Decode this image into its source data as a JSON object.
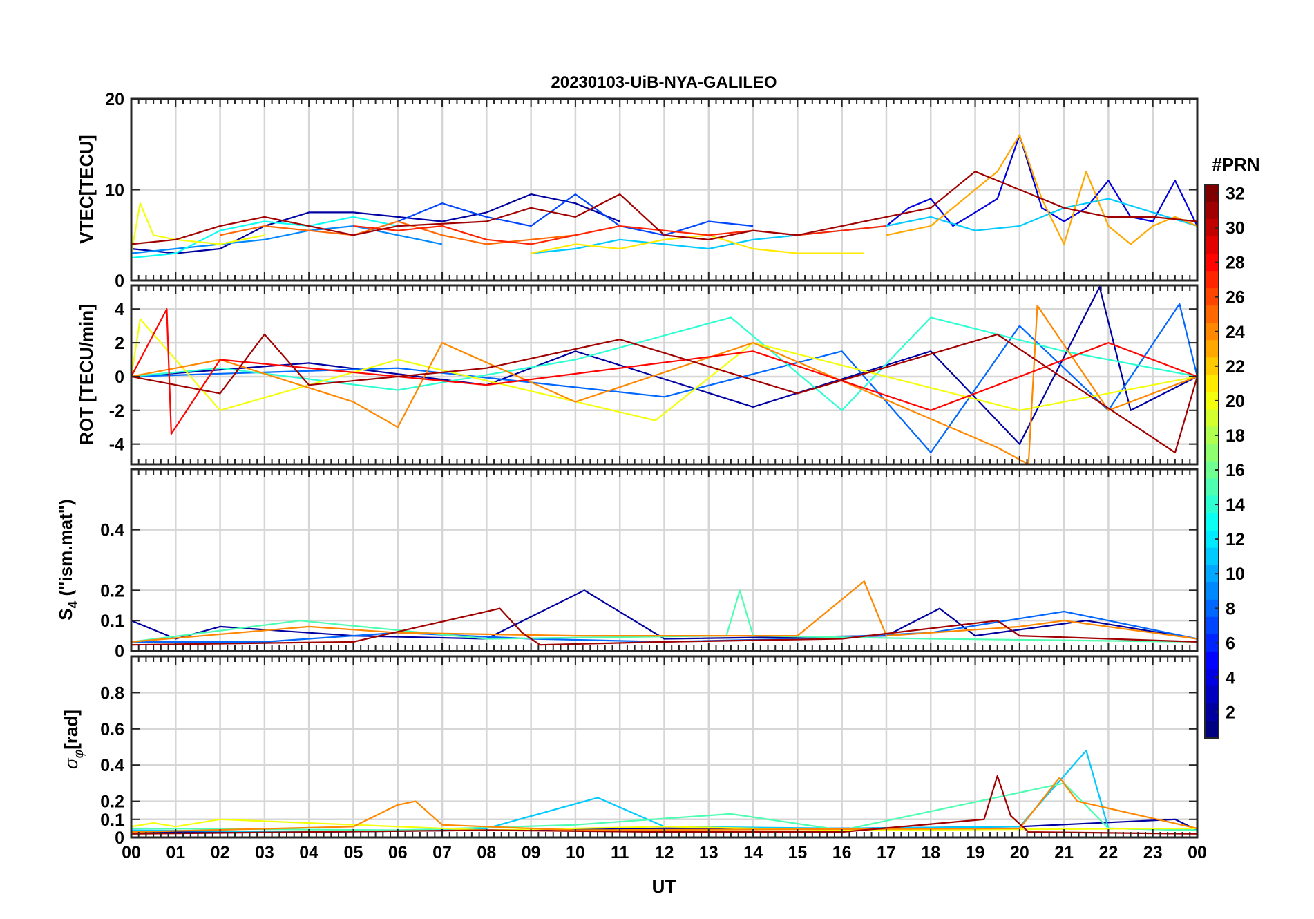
{
  "title": "20230103-UiB-NYA-GALILEO",
  "colorbar": {
    "label": "#PRN",
    "ticks": [
      "2",
      "4",
      "6",
      "8",
      "10",
      "12",
      "14",
      "16",
      "18",
      "20",
      "22",
      "24",
      "26",
      "28",
      "30",
      "32"
    ],
    "range": [
      1,
      32
    ],
    "colormap": "jet",
    "colors": [
      "#00008f",
      "#0000ff",
      "#0080ff",
      "#00ffff",
      "#80ff80",
      "#ffff00",
      "#ff8000",
      "#ff0000",
      "#800000"
    ]
  },
  "x_axis": {
    "label": "UT",
    "ticks": [
      "00",
      "01",
      "02",
      "03",
      "04",
      "05",
      "06",
      "07",
      "08",
      "09",
      "10",
      "11",
      "12",
      "13",
      "14",
      "15",
      "16",
      "17",
      "18",
      "19",
      "20",
      "21",
      "22",
      "23",
      "00"
    ],
    "range": [
      0,
      24
    ]
  },
  "panels": [
    {
      "id": "vtec",
      "ylabel": "VTEC[TECU]",
      "ylim": [
        0,
        20
      ],
      "yticks": [
        0,
        10,
        20
      ],
      "ytick_labels": [
        "0",
        "10",
        "20"
      ]
    },
    {
      "id": "rot",
      "ylabel": "ROT [TECU/min]",
      "ylim": [
        -5.2,
        5.4
      ],
      "yticks": [
        -4,
        -2,
        0,
        2,
        4
      ],
      "ytick_labels": [
        "-4",
        "-2",
        "0",
        "2",
        "4"
      ]
    },
    {
      "id": "s4",
      "ylabel": "S4 (\"ism.mat\")",
      "ylim": [
        0,
        0.6
      ],
      "yticks": [
        0,
        0.1,
        0.2,
        0.4
      ],
      "ytick_labels": [
        "0",
        "0.1",
        "0.2",
        "0.4"
      ]
    },
    {
      "id": "sigma",
      "ylabel": "σφ[rad]",
      "ylim": [
        0,
        1.0
      ],
      "yticks": [
        0,
        0.1,
        0.2,
        0.4,
        0.6,
        0.8
      ],
      "ytick_labels": [
        "0",
        "0.1",
        "0.2",
        "0.4",
        "0.6",
        "0.8"
      ]
    }
  ],
  "chart_data": [
    {
      "type": "line",
      "panel": "vtec",
      "title": "20230103-UiB-NYA-GALILEO",
      "ylabel": "VTEC[TECU]",
      "xlim": [
        0,
        24
      ],
      "ylim": [
        0,
        20
      ],
      "grid": true,
      "series": [
        {
          "prn": 2,
          "x": [
            0,
            1,
            2,
            3,
            4,
            5,
            6,
            7,
            8,
            9,
            10,
            11
          ],
          "y": [
            3.5,
            3,
            3.5,
            6,
            7.5,
            7.5,
            7,
            6.5,
            7.5,
            9.5,
            8.5,
            6.5
          ]
        },
        {
          "prn": 4,
          "x": [
            17,
            17.5,
            18,
            18.5,
            19,
            19.5,
            20,
            20.5,
            21,
            21.5,
            22,
            22.5,
            23,
            23.5,
            24
          ],
          "y": [
            6,
            8,
            9,
            6,
            7.5,
            9,
            16,
            8,
            6.5,
            8,
            11,
            7,
            6.5,
            11,
            6
          ]
        },
        {
          "prn": 7,
          "x": [
            6,
            7,
            8,
            9,
            10,
            11,
            12,
            13,
            14
          ],
          "y": [
            6.5,
            8.5,
            7,
            6,
            9.5,
            6,
            5,
            6.5,
            6
          ]
        },
        {
          "prn": 9,
          "x": [
            0,
            1,
            2,
            3,
            4,
            5,
            6,
            7
          ],
          "y": [
            3,
            3.5,
            4,
            4.5,
            5.5,
            6,
            5,
            4
          ]
        },
        {
          "prn": 11,
          "x": [
            9,
            10,
            11,
            12,
            13,
            14,
            15,
            16,
            17,
            18,
            19,
            20,
            21,
            22,
            23,
            24
          ],
          "y": [
            3,
            3.5,
            4.5,
            4,
            3.5,
            4.5,
            5,
            5.5,
            6,
            7,
            5.5,
            6,
            8,
            9,
            7.5,
            6
          ]
        },
        {
          "prn": 13,
          "x": [
            0,
            1,
            2,
            3,
            4,
            5,
            6
          ],
          "y": [
            2.5,
            3,
            5.5,
            6.5,
            6,
            7,
            6
          ]
        },
        {
          "prn": 20,
          "x": [
            0,
            0.2,
            0.5,
            1,
            2,
            3
          ],
          "y": [
            3,
            8.5,
            5,
            4.5,
            4,
            5
          ]
        },
        {
          "prn": 21,
          "x": [
            9,
            10,
            11,
            12,
            13,
            14,
            15,
            16,
            16.5
          ],
          "y": [
            3,
            4,
            3.5,
            4.5,
            5,
            3.5,
            3,
            3,
            3
          ]
        },
        {
          "prn": 23,
          "x": [
            17,
            18,
            19,
            19.5,
            20,
            20.5,
            21,
            21.5,
            22,
            22.5,
            23,
            23.5,
            24
          ],
          "y": [
            5,
            6,
            10,
            12,
            16,
            9,
            4,
            12,
            6,
            4,
            6,
            7,
            6
          ]
        },
        {
          "prn": 25,
          "x": [
            2,
            3,
            4,
            5,
            6,
            7,
            8,
            9,
            10
          ],
          "y": [
            5,
            6,
            5.5,
            5,
            6.5,
            5,
            4,
            4.5,
            5
          ]
        },
        {
          "prn": 27,
          "x": [
            5,
            6,
            7,
            8,
            9,
            10,
            11,
            12,
            13,
            14,
            15,
            16,
            17
          ],
          "y": [
            6,
            5.5,
            6,
            4.5,
            4,
            5,
            6,
            5.5,
            5,
            5.5,
            5,
            5.5,
            6
          ]
        },
        {
          "prn": 31,
          "x": [
            0,
            1,
            2,
            3,
            4,
            5,
            6,
            8,
            9,
            10,
            11,
            12,
            13,
            14,
            15,
            16,
            17,
            18,
            19,
            20,
            21,
            22,
            23,
            24
          ],
          "y": [
            4,
            4.5,
            6,
            7,
            6,
            5,
            6,
            6.5,
            8,
            7,
            9.5,
            5,
            4.5,
            5.5,
            5,
            6,
            7,
            8,
            12,
            10,
            8,
            7,
            7,
            6.5
          ]
        }
      ]
    },
    {
      "type": "line",
      "panel": "rot",
      "ylabel": "ROT [TECU/min]",
      "xlim": [
        0,
        24
      ],
      "ylim": [
        -5.2,
        5.4
      ],
      "grid": true,
      "series": [
        {
          "prn": 2,
          "x": [
            0,
            4,
            8,
            10,
            14,
            18,
            20,
            21.8,
            22.5,
            24
          ],
          "y": [
            0,
            0.8,
            -0.5,
            1.5,
            -1.8,
            1.5,
            -4,
            5.3,
            -2,
            0
          ]
        },
        {
          "prn": 8,
          "x": [
            0,
            6,
            12,
            16,
            18,
            20,
            22,
            23.6,
            24
          ],
          "y": [
            0,
            0.5,
            -1.2,
            1.5,
            -4.5,
            3,
            -2,
            4.3,
            0
          ]
        },
        {
          "prn": 14,
          "x": [
            0,
            2,
            6,
            10,
            13.5,
            16,
            18,
            21,
            24
          ],
          "y": [
            0,
            0.5,
            -0.8,
            1,
            3.5,
            -2,
            3.5,
            1.5,
            0
          ]
        },
        {
          "prn": 20,
          "x": [
            0,
            0.2,
            2,
            6,
            11.8,
            14,
            20,
            24
          ],
          "y": [
            0,
            3.4,
            -2,
            1,
            -2.6,
            2,
            -2,
            0
          ]
        },
        {
          "prn": 24,
          "x": [
            0,
            2,
            5,
            6,
            7,
            10,
            14,
            19.5,
            20.2,
            20.4,
            22,
            24
          ],
          "y": [
            0,
            1,
            -1.5,
            -3,
            2,
            -1.5,
            2,
            -4.2,
            -5.2,
            4.2,
            -2,
            0
          ]
        },
        {
          "prn": 28,
          "x": [
            0,
            0.8,
            0.9,
            2,
            8,
            14,
            18,
            22,
            24
          ],
          "y": [
            0,
            4,
            -3.4,
            1,
            -0.5,
            1.5,
            -2,
            2,
            0
          ]
        },
        {
          "prn": 31,
          "x": [
            0,
            2,
            3,
            4,
            8,
            11,
            15,
            19.5,
            23.5,
            24
          ],
          "y": [
            0,
            -1,
            2.5,
            -0.5,
            0.5,
            2.2,
            -1,
            2.5,
            -4.5,
            0
          ]
        }
      ]
    },
    {
      "type": "line",
      "panel": "s4",
      "ylabel": "S4 (\"ism.mat\")",
      "xlim": [
        0,
        24
      ],
      "ylim": [
        0,
        0.6
      ],
      "grid": true,
      "series": [
        {
          "prn": 2,
          "x": [
            0,
            1,
            2,
            5,
            8,
            10.2,
            12,
            17,
            18.2,
            19,
            21.5,
            24
          ],
          "y": [
            0.1,
            0.04,
            0.08,
            0.05,
            0.04,
            0.2,
            0.04,
            0.05,
            0.14,
            0.05,
            0.1,
            0.04
          ]
        },
        {
          "prn": 8,
          "x": [
            0,
            3,
            6,
            9,
            12,
            15,
            18,
            21,
            24
          ],
          "y": [
            0.03,
            0.03,
            0.06,
            0.04,
            0.03,
            0.04,
            0.06,
            0.13,
            0.04
          ]
        },
        {
          "prn": 15,
          "x": [
            0,
            3.8,
            8,
            13.4,
            13.7,
            14,
            18,
            24
          ],
          "y": [
            0.03,
            0.1,
            0.04,
            0.05,
            0.2,
            0.05,
            0.04,
            0.03
          ]
        },
        {
          "prn": 24,
          "x": [
            0,
            4,
            6,
            10,
            15,
            16.5,
            17,
            20,
            21,
            24
          ],
          "y": [
            0.03,
            0.08,
            0.06,
            0.05,
            0.05,
            0.23,
            0.05,
            0.08,
            0.1,
            0.04
          ]
        },
        {
          "prn": 31,
          "x": [
            0,
            5,
            8.3,
            8.8,
            9.2,
            12,
            16,
            19.5,
            20,
            24
          ],
          "y": [
            0.02,
            0.03,
            0.14,
            0.06,
            0.02,
            0.03,
            0.04,
            0.1,
            0.05,
            0.03
          ]
        }
      ]
    },
    {
      "type": "line",
      "panel": "sigma",
      "ylabel": "σφ[rad]",
      "xlim": [
        0,
        24
      ],
      "ylim": [
        0,
        1.0
      ],
      "grid": true,
      "series": [
        {
          "prn": 2,
          "x": [
            0,
            4,
            8,
            12,
            16,
            20,
            23.5,
            24
          ],
          "y": [
            0.03,
            0.03,
            0.04,
            0.05,
            0.05,
            0.06,
            0.1,
            0.04
          ]
        },
        {
          "prn": 11,
          "x": [
            0,
            4,
            8,
            10.5,
            12,
            16,
            20,
            21.5,
            22,
            24
          ],
          "y": [
            0.04,
            0.03,
            0.05,
            0.22,
            0.06,
            0.05,
            0.06,
            0.48,
            0.05,
            0.04
          ]
        },
        {
          "prn": 15,
          "x": [
            0,
            6,
            10,
            13.5,
            16,
            21,
            22,
            24
          ],
          "y": [
            0.05,
            0.04,
            0.07,
            0.13,
            0.04,
            0.3,
            0.05,
            0.04
          ]
        },
        {
          "prn": 20,
          "x": [
            0,
            0.5,
            1,
            2,
            8,
            12,
            16,
            24
          ],
          "y": [
            0.06,
            0.08,
            0.06,
            0.1,
            0.04,
            0.06,
            0.04,
            0.05
          ]
        },
        {
          "prn": 24,
          "x": [
            0,
            5,
            6,
            6.4,
            7,
            10,
            20,
            20.9,
            21.3,
            24
          ],
          "y": [
            0.03,
            0.06,
            0.18,
            0.2,
            0.07,
            0.04,
            0.05,
            0.33,
            0.2,
            0.05
          ]
        },
        {
          "prn": 31,
          "x": [
            0,
            4,
            8,
            12,
            16,
            19.2,
            19.5,
            19.8,
            20.2,
            24
          ],
          "y": [
            0.02,
            0.03,
            0.04,
            0.03,
            0.03,
            0.1,
            0.34,
            0.12,
            0.03,
            0.02
          ]
        }
      ]
    }
  ]
}
